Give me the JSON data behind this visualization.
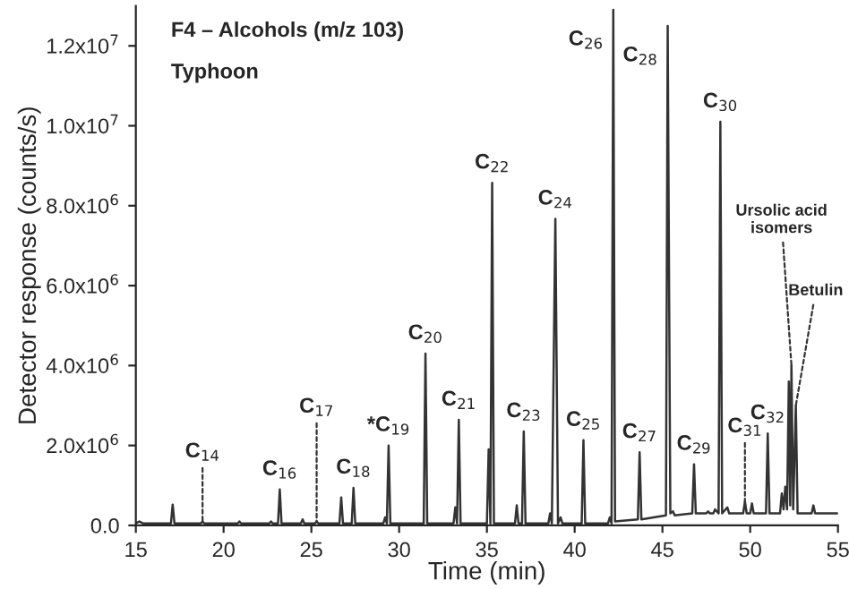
{
  "chart_data": {
    "type": "line",
    "title": "F4 – Alcohols (m/z 103)",
    "subtitle": "Typhoon",
    "xlabel": "Time (min)",
    "ylabel": "Detector response (counts/s)",
    "x": [
      15.0,
      15.2,
      15.4,
      17.0,
      17.1,
      17.2,
      18.7,
      18.8,
      18.9,
      20.8,
      20.9,
      21.0,
      22.6,
      22.7,
      22.8,
      23.1,
      23.2,
      23.3,
      24.4,
      24.5,
      24.6,
      25.2,
      25.3,
      25.4,
      26.6,
      26.7,
      26.8,
      27.3,
      27.4,
      27.5,
      29.1,
      29.2,
      29.3,
      29.4,
      29.5,
      31.4,
      31.5,
      31.6,
      33.1,
      33.2,
      33.3,
      33.4,
      33.5,
      35.0,
      35.1,
      35.2,
      35.3,
      35.4,
      36.6,
      36.7,
      36.8,
      37.0,
      37.1,
      37.2,
      38.5,
      38.6,
      38.7,
      38.9,
      39.05,
      39.2,
      39.3,
      40.4,
      40.5,
      40.6,
      41.9,
      42.0,
      42.1,
      42.2,
      42.3,
      43.6,
      43.7,
      43.8,
      45.2,
      45.3,
      45.45,
      45.6,
      45.7,
      46.7,
      46.8,
      46.9,
      47.5,
      47.6,
      47.7,
      47.9,
      48.0,
      48.2,
      48.3,
      48.4,
      48.7,
      48.8,
      49.6,
      49.7,
      49.8,
      50.0,
      50.1,
      50.2,
      50.9,
      51.0,
      51.1,
      51.7,
      51.8,
      51.9,
      52.0,
      52.1,
      52.2,
      52.28,
      52.35,
      52.45,
      52.6,
      52.7,
      53.5,
      53.6,
      53.7,
      55.0
    ],
    "series": [
      {
        "color": "#333333",
        "values": [
          50000,
          100000,
          50000,
          50000,
          520000,
          50000,
          50000,
          100000,
          50000,
          50000,
          100000,
          50000,
          50000,
          100000,
          50000,
          50000,
          900000,
          50000,
          50000,
          150000,
          50000,
          50000,
          100000,
          50000,
          50000,
          700000,
          50000,
          50000,
          940000,
          50000,
          50000,
          200000,
          50000,
          2000000,
          50000,
          50000,
          4300000,
          50000,
          50000,
          450000,
          50000,
          2640000,
          50000,
          50000,
          1900000,
          50000,
          8570000,
          50000,
          50000,
          500000,
          50000,
          50000,
          2350000,
          50000,
          50000,
          300000,
          50000,
          7670000,
          50000,
          200000,
          50000,
          50000,
          2130000,
          50000,
          50000,
          200000,
          50000,
          12900000,
          100000,
          150000,
          1830000,
          150000,
          250000,
          12500000,
          300000,
          350000,
          250000,
          300000,
          1530000,
          300000,
          300000,
          350000,
          300000,
          300000,
          400000,
          300000,
          10100000,
          300000,
          450000,
          300000,
          300000,
          600000,
          300000,
          300000,
          550000,
          300000,
          300000,
          2300000,
          300000,
          300000,
          800000,
          400000,
          970000,
          400000,
          3600000,
          500000,
          4000000,
          400000,
          3000000,
          300000,
          300000,
          500000,
          300000,
          300000
        ]
      }
    ],
    "xlim": [
      15,
      55
    ],
    "xticks": [
      15,
      20,
      25,
      30,
      35,
      40,
      45,
      50,
      55
    ],
    "ylim": [
      0,
      13000000
    ],
    "yticks": [
      {
        "value": 0,
        "label": "0.0"
      },
      {
        "value": 2000000,
        "label": "2.0x10$^{6}$"
      },
      {
        "value": 4000000,
        "label": "4.0x10$^{6}$"
      },
      {
        "value": 6000000,
        "label": "6.0x10$^{6}$"
      },
      {
        "value": 8000000,
        "label": "8.0x10$^{6}$"
      },
      {
        "value": 10000000,
        "label": "1.0x10$^{7}$"
      },
      {
        "value": 12000000,
        "label": "1.2x10$^{7}$"
      }
    ],
    "annotations": [
      {
        "text": "C$_{14}$",
        "x": 18.8,
        "y": 100000
      },
      {
        "text": "C$_{16}$",
        "x": 23.2,
        "y": 900000
      },
      {
        "text": "C$_{17}$",
        "x": 25.3,
        "y": 100000
      },
      {
        "text": "C$_{18}$",
        "x": 27.4,
        "y": 940000
      },
      {
        "text": "*C$_{19}$",
        "x": 29.4,
        "y": 2000000
      },
      {
        "text": "C$_{20}$",
        "x": 31.5,
        "y": 4300000
      },
      {
        "text": "C$_{21}$",
        "x": 33.4,
        "y": 2640000
      },
      {
        "text": "C$_{22}$",
        "x": 35.3,
        "y": 8570000
      },
      {
        "text": "C$_{23}$",
        "x": 37.1,
        "y": 2350000
      },
      {
        "text": "C$_{24}$",
        "x": 38.9,
        "y": 7670000
      },
      {
        "text": "C$_{25}$",
        "x": 40.5,
        "y": 2130000
      },
      {
        "text": "C$_{26}$",
        "x": 42.2,
        "y": 12900000
      },
      {
        "text": "C$_{27}$",
        "x": 43.7,
        "y": 1830000
      },
      {
        "text": "C$_{28}$",
        "x": 45.3,
        "y": 12500000
      },
      {
        "text": "C$_{29}$",
        "x": 46.8,
        "y": 1530000
      },
      {
        "text": "C$_{30}$",
        "x": 48.3,
        "y": 10100000
      },
      {
        "text": "C$_{31}$",
        "x": 49.7,
        "y": 600000
      },
      {
        "text": "C$_{32}$",
        "x": 51.0,
        "y": 2300000
      },
      {
        "text": "Ursolic acid\nisomers",
        "x": 52.35,
        "y": 4000000
      },
      {
        "text": "Betulin",
        "x": 52.6,
        "y": 3000000
      }
    ]
  }
}
